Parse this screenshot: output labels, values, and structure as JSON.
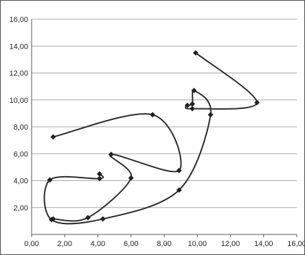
{
  "chart_data": {
    "type": "scatter",
    "subtype": "smooth-lines-with-markers",
    "title": "",
    "xlabel": "",
    "ylabel": "",
    "xlim": [
      0,
      16
    ],
    "ylim": [
      0,
      16
    ],
    "x_ticks": [
      "0,00",
      "2,00",
      "4,00",
      "6,00",
      "8,00",
      "10,00",
      "12,00",
      "14,00",
      "16,00"
    ],
    "y_ticks": [
      "2,00",
      "4,00",
      "6,00",
      "8,00",
      "10,00",
      "12,00",
      "14,00",
      "16,00"
    ],
    "x_tick_values": [
      0,
      2,
      4,
      6,
      8,
      10,
      12,
      14,
      16
    ],
    "y_tick_values": [
      2,
      4,
      6,
      8,
      10,
      12,
      14,
      16
    ],
    "grid": "horizontal major gridlines",
    "legend": "none",
    "line_color": "#2b2b2b",
    "marker": "diamond",
    "series": [
      {
        "x": [
          9.9,
          13.6,
          9.7,
          9.4,
          9.7,
          9.8,
          10.8,
          8.9,
          4.3,
          1.2,
          1.1,
          4.1,
          4.1
        ],
        "y": [
          13.5,
          9.8,
          9.35,
          9.6,
          9.7,
          10.7,
          8.9,
          3.3,
          1.15,
          1.1,
          4.05,
          4.15,
          4.5
        ]
      },
      {
        "x": [
          1.3,
          3.4,
          6.0,
          4.8,
          8.9,
          7.3,
          1.3
        ],
        "y": [
          1.15,
          1.25,
          4.2,
          5.95,
          4.75,
          8.9,
          7.25
        ]
      }
    ]
  }
}
